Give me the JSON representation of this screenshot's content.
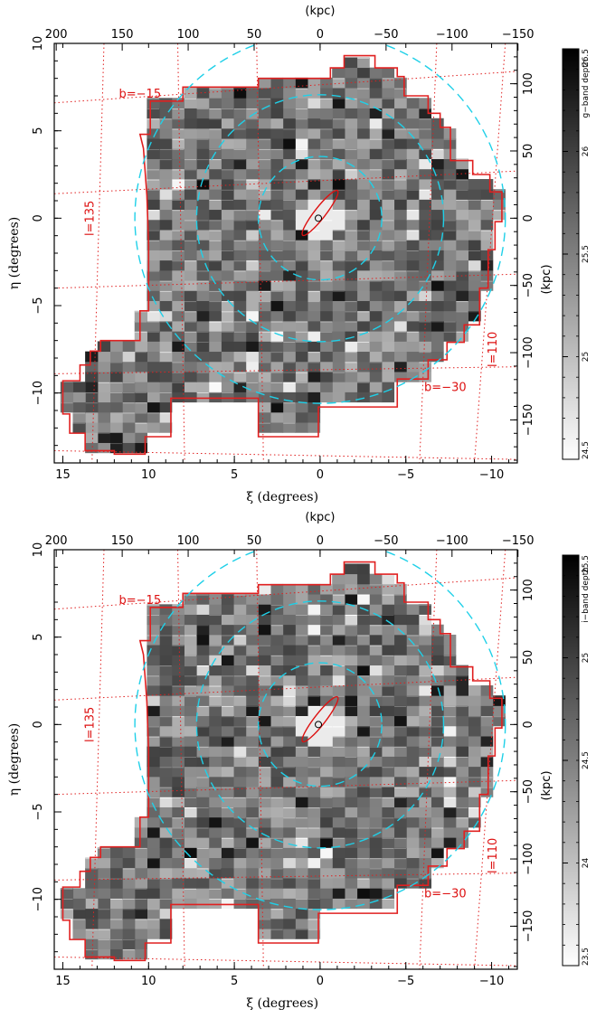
{
  "chart_data": [
    {
      "type": "heatmap",
      "id": "top",
      "xlabel": "ξ (degrees)",
      "ylabel": "η (degrees)",
      "top_axis_label": "(kpc)",
      "right_axis_label": "(kpc)",
      "xlim": [
        15.5,
        -11.5
      ],
      "ylim": [
        -14,
        10
      ],
      "x_ticks": [
        15,
        10,
        5,
        0,
        -5,
        -10
      ],
      "y_ticks": [
        10,
        5,
        0,
        -5,
        -10
      ],
      "x_tick_labels": [
        "15",
        "10",
        "5",
        "0",
        "−5",
        "−10"
      ],
      "y_tick_labels": [
        "10",
        "5",
        "0",
        "−5",
        "−10"
      ],
      "top_ticks": [
        200,
        150,
        100,
        50,
        0,
        -50,
        -100,
        -150
      ],
      "top_tick_labels": [
        "200",
        "150",
        "100",
        "50",
        "0",
        "−50",
        "−100",
        "−150"
      ],
      "right_ticks": [
        100,
        50,
        0,
        -50,
        -100,
        -150
      ],
      "right_tick_labels": [
        "100",
        "50",
        "0",
        "−50",
        "−100",
        "−150"
      ],
      "colorbar": {
        "label": "g−band depth",
        "min": 24.5,
        "max": 26.5,
        "ticks": [
          26.5,
          26,
          25.5,
          25,
          24.5
        ],
        "tick_labels": [
          "26.5",
          "26",
          "25.5",
          "25",
          "24.5"
        ]
      },
      "galactic_labels": [
        {
          "text": "b=−15",
          "x": 10.5,
          "y": 6.9
        },
        {
          "text": "b=−30",
          "x": -7.3,
          "y": -9.9
        },
        {
          "text": "l=135",
          "x": 13.2,
          "y": 0.0
        },
        {
          "text": "l=110",
          "x": -10.3,
          "y": -7.5
        }
      ],
      "circles_radius_deg": [
        3.6,
        7.2,
        10.8
      ],
      "colors": {
        "footprint": "#e02020",
        "circles": "#1fd0e8",
        "grid": "#e02020"
      }
    },
    {
      "type": "heatmap",
      "id": "bottom",
      "xlabel": "ξ (degrees)",
      "ylabel": "η (degrees)",
      "top_axis_label": "(kpc)",
      "right_axis_label": "(kpc)",
      "xlim": [
        15.5,
        -11.5
      ],
      "ylim": [
        -14,
        10
      ],
      "x_ticks": [
        15,
        10,
        5,
        0,
        -5,
        -10
      ],
      "y_ticks": [
        10,
        5,
        0,
        -5,
        -10
      ],
      "x_tick_labels": [
        "15",
        "10",
        "5",
        "0",
        "−5",
        "−10"
      ],
      "y_tick_labels": [
        "10",
        "5",
        "0",
        "−5",
        "−10"
      ],
      "top_ticks": [
        200,
        150,
        100,
        50,
        0,
        -50,
        -100,
        -150
      ],
      "top_tick_labels": [
        "200",
        "150",
        "100",
        "50",
        "0",
        "−50",
        "−100",
        "−150"
      ],
      "right_ticks": [
        100,
        50,
        0,
        -50,
        -100,
        -150
      ],
      "right_tick_labels": [
        "100",
        "50",
        "0",
        "−50",
        "−100",
        "−150"
      ],
      "colorbar": {
        "label": "i−band depth",
        "min": 23.5,
        "max": 25.5,
        "ticks": [
          25.5,
          25,
          24.5,
          24,
          23.5
        ],
        "tick_labels": [
          "25.5",
          "25",
          "24.5",
          "24",
          "23.5"
        ]
      },
      "galactic_labels": [
        {
          "text": "b=−15",
          "x": 10.5,
          "y": 6.9
        },
        {
          "text": "b=−30",
          "x": -7.3,
          "y": -9.9
        },
        {
          "text": "l=135",
          "x": 13.2,
          "y": 0.0
        },
        {
          "text": "l=110",
          "x": -10.3,
          "y": -7.5
        }
      ],
      "circles_radius_deg": [
        3.6,
        7.2,
        10.8
      ],
      "colors": {
        "footprint": "#e02020",
        "circles": "#1fd0e8",
        "grid": "#e02020"
      }
    }
  ]
}
